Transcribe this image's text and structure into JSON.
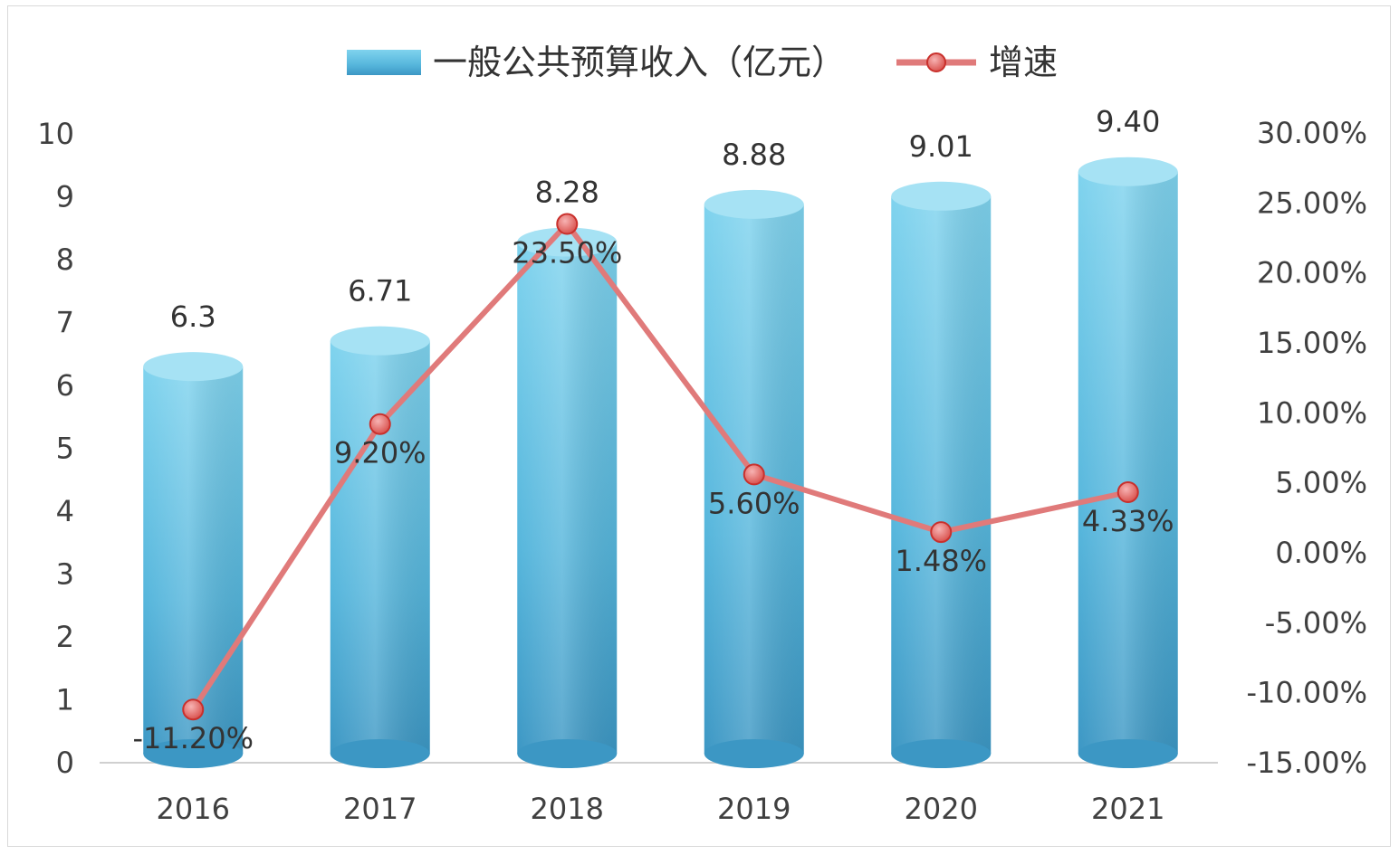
{
  "chart_data": {
    "type": "bar",
    "categories": [
      "2016",
      "2017",
      "2018",
      "2019",
      "2020",
      "2021"
    ],
    "series": [
      {
        "name": "一般公共预算收入（亿元）",
        "type": "bar",
        "axis": "left",
        "values": [
          6.3,
          6.71,
          8.28,
          8.88,
          9.01,
          9.4
        ],
        "labels": [
          "6.3",
          "6.71",
          "8.28",
          "8.88",
          "9.01",
          "9.40"
        ],
        "color": "#5bc0de"
      },
      {
        "name": "增速",
        "type": "line",
        "axis": "right",
        "values": [
          -11.2,
          9.2,
          23.5,
          5.6,
          1.48,
          4.33
        ],
        "labels": [
          "-11.20%",
          "9.20%",
          "23.50%",
          "5.60%",
          "1.48%",
          "4.33%"
        ],
        "color": "#e07a7a"
      }
    ],
    "y_left": {
      "range": [
        0,
        10
      ],
      "ticks": [
        0,
        1,
        2,
        3,
        4,
        5,
        6,
        7,
        8,
        9,
        10
      ],
      "tick_labels": [
        "0",
        "1",
        "2",
        "3",
        "4",
        "5",
        "6",
        "7",
        "8",
        "9",
        "10"
      ]
    },
    "y_right": {
      "range": [
        -15,
        30
      ],
      "ticks": [
        -15,
        -10,
        -5,
        0,
        5,
        10,
        15,
        20,
        25,
        30
      ],
      "tick_labels": [
        "-15.00%",
        "-10.00%",
        "-5.00%",
        "0.00%",
        "5.00%",
        "10.00%",
        "15.00%",
        "20.00%",
        "25.00%",
        "30.00%"
      ]
    },
    "legend_position": "top",
    "grid": false
  }
}
